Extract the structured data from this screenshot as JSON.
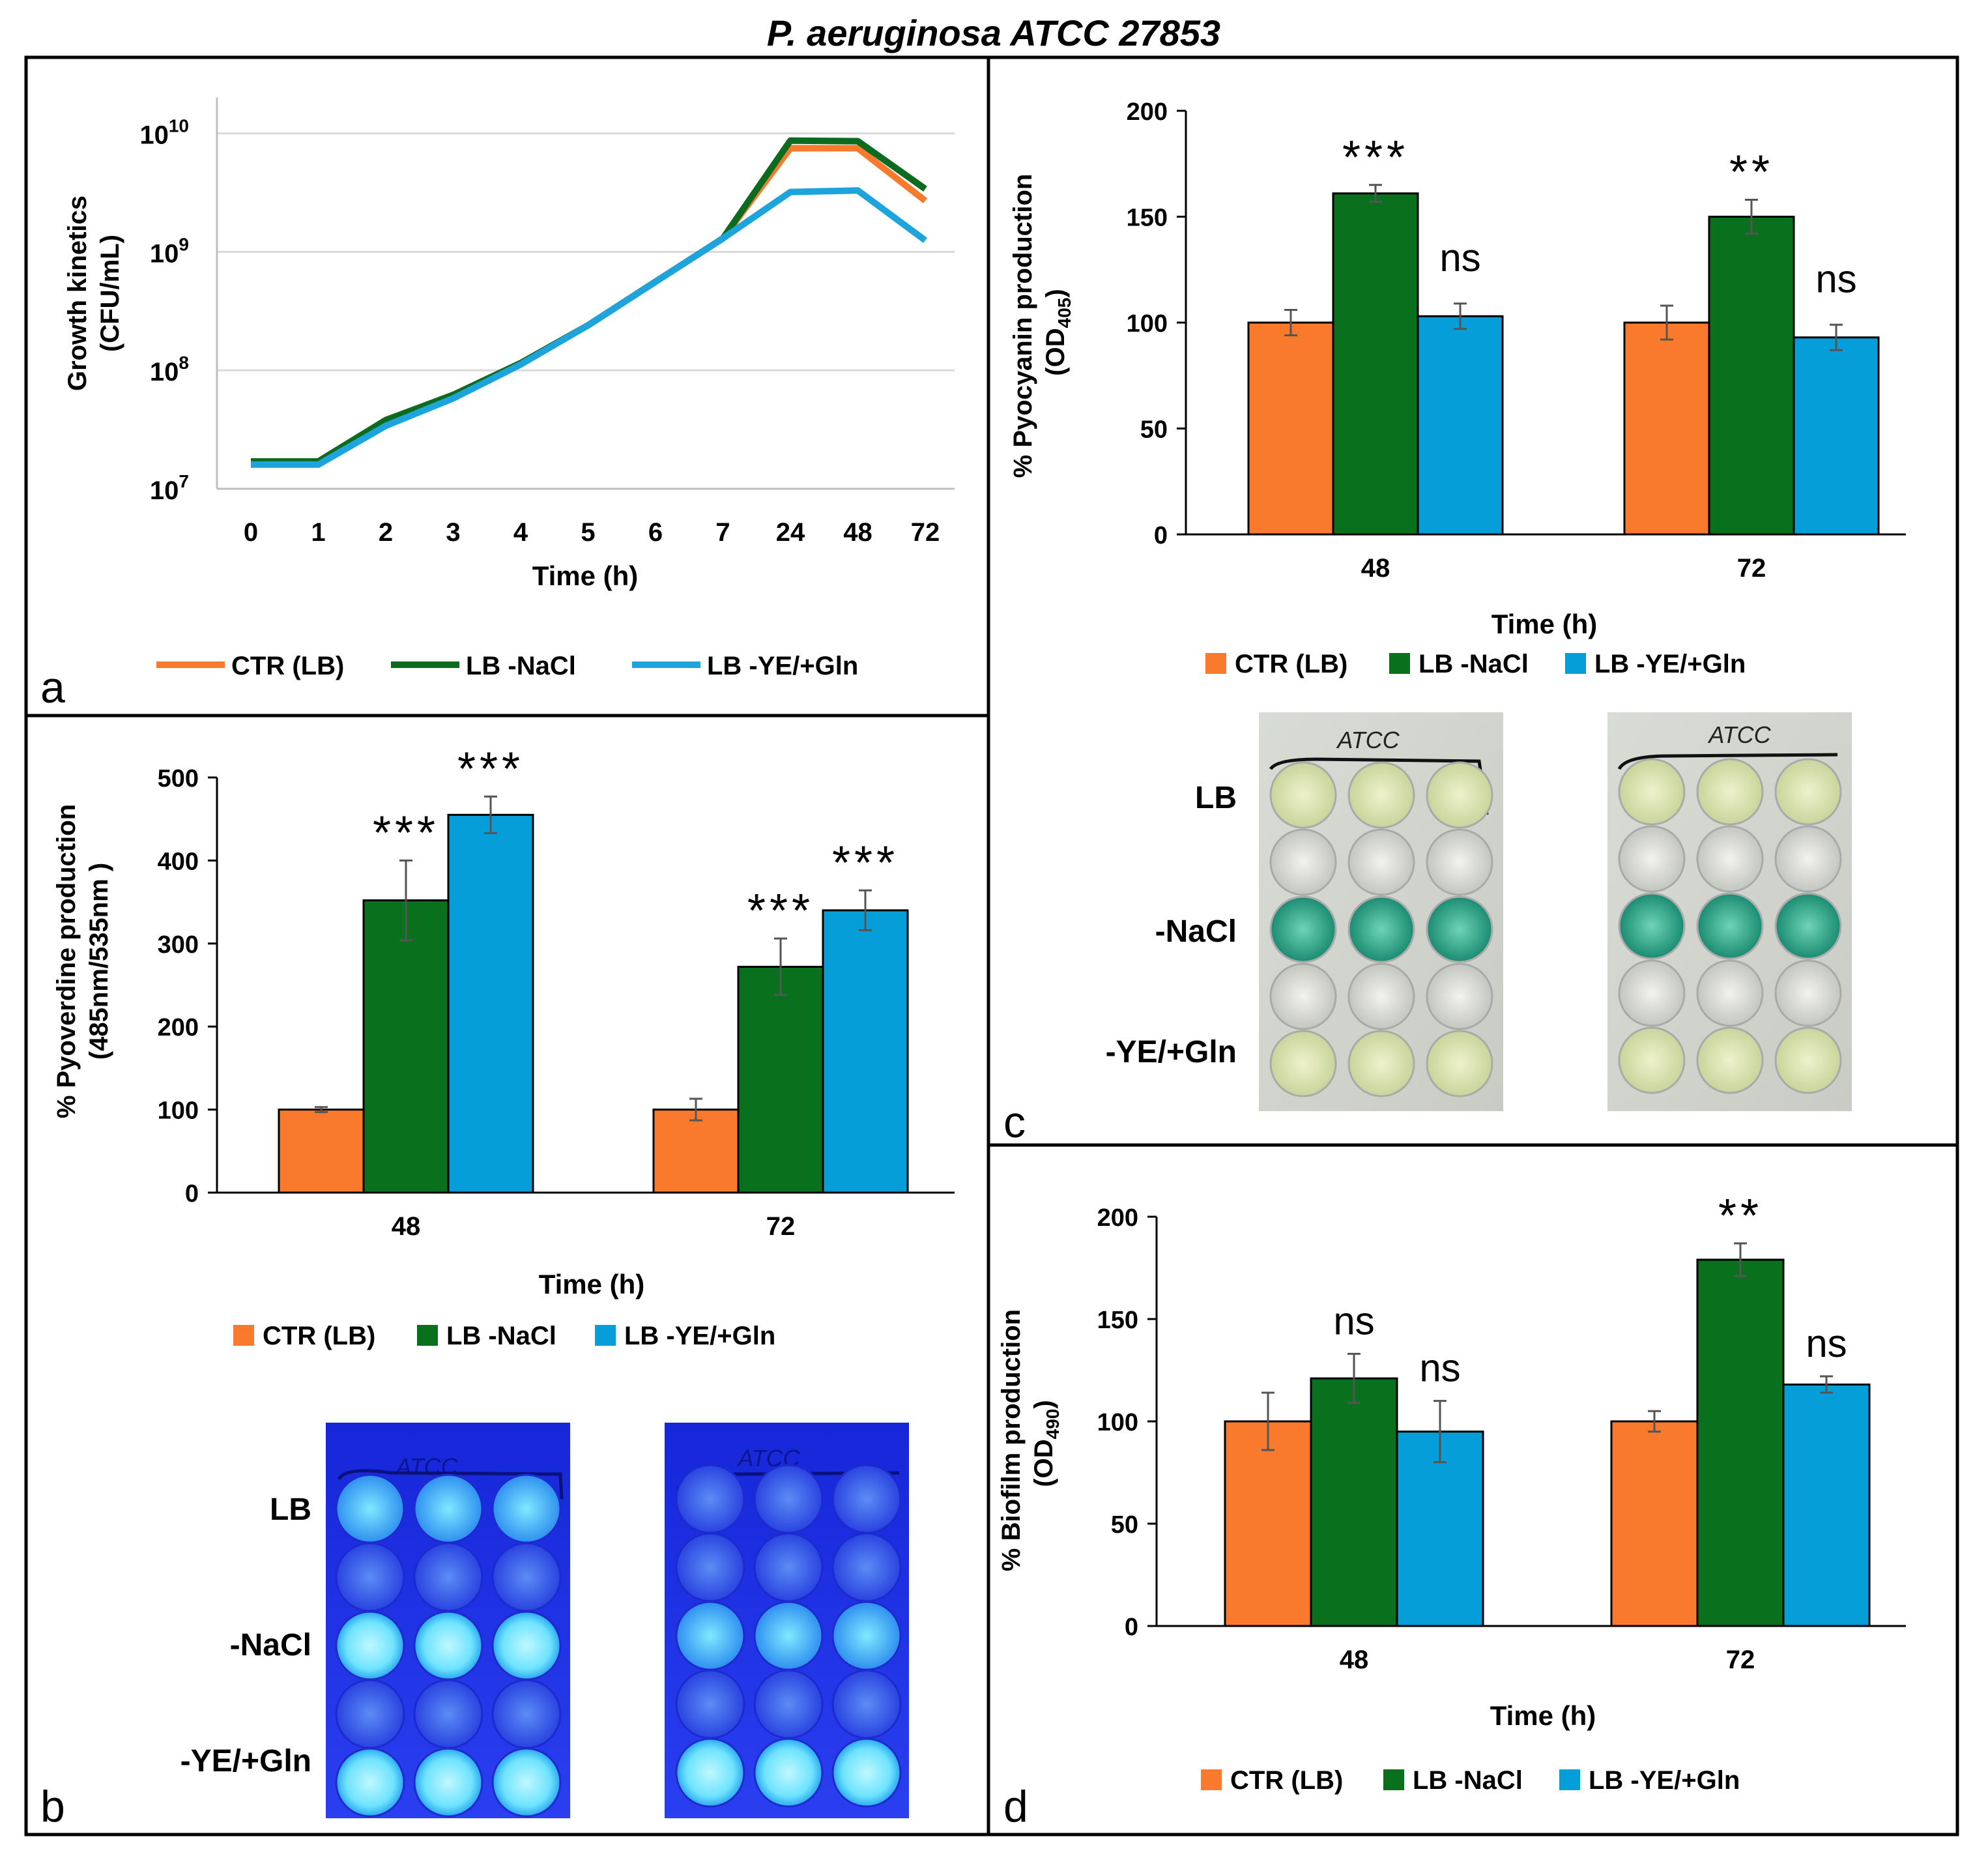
{
  "figure_title": "P. aeruginosa ATCC 27853",
  "colors": {
    "ctr": "#F97A2C",
    "nacl": "#0B6B1F",
    "yeg": "#1EA4DC",
    "bar_ctr": "#F97A2C",
    "bar_nacl": "#09701E",
    "bar_yeg": "#069ED8",
    "grid": "#D9D9D9"
  },
  "chart_data": [
    {
      "id": "a",
      "panel_label": "a",
      "type": "line",
      "ylabel_lines": [
        "Growth kinetics",
        "(CFU/mL)"
      ],
      "xlabel": "Time (h)",
      "categories": [
        "0",
        "1",
        "2",
        "3",
        "4",
        "5",
        "6",
        "7",
        "24",
        "48",
        "72"
      ],
      "y_scale": "log",
      "ylim": [
        10000000,
        20000000000
      ],
      "yticks": [
        {
          "base": "10",
          "exp": "7"
        },
        {
          "base": "10",
          "exp": "8"
        },
        {
          "base": "10",
          "exp": "9"
        },
        {
          "base": "10",
          "exp": "10"
        }
      ],
      "series": [
        {
          "key": "ctr",
          "name": "CTR (LB)",
          "values": [
            17000000,
            17000000,
            38000000,
            62000000,
            115000000,
            240000000,
            560000000,
            1300000000,
            7500000000,
            7500000000,
            2700000000
          ]
        },
        {
          "key": "nacl",
          "name": "LB -NaCl",
          "values": [
            17000000,
            17000000,
            38000000,
            62000000,
            115000000,
            240000000,
            560000000,
            1300000000,
            8700000000,
            8600000000,
            3400000000
          ]
        },
        {
          "key": "yeg",
          "name": "LB -YE/+Gln",
          "values": [
            16000000,
            16000000,
            34000000,
            58000000,
            112000000,
            240000000,
            560000000,
            1300000000,
            3200000000,
            3300000000,
            1250000000
          ]
        }
      ]
    },
    {
      "id": "b",
      "panel_label": "b",
      "type": "bar",
      "ylabel_lines": [
        "% Pyoverdine  production",
        "(485nm/535nm )"
      ],
      "xlabel": "Time (h)",
      "categories": [
        "48",
        "72"
      ],
      "ylim": [
        0,
        500
      ],
      "yticks": [
        "0",
        "100",
        "200",
        "300",
        "400",
        "500"
      ],
      "series": [
        {
          "key": "ctr",
          "name": "CTR (LB)",
          "values": [
            100,
            100
          ],
          "errors": [
            3,
            13
          ],
          "annotations": [
            "",
            ""
          ]
        },
        {
          "key": "nacl",
          "name": "LB -NaCl",
          "values": [
            352,
            272
          ],
          "errors": [
            48,
            34
          ],
          "annotations": [
            "***",
            "***"
          ]
        },
        {
          "key": "yeg",
          "name": "LB -YE/+Gln",
          "values": [
            455,
            340
          ],
          "errors": [
            22,
            24
          ],
          "annotations": [
            "***",
            "***"
          ]
        }
      ]
    },
    {
      "id": "c",
      "panel_label": "c",
      "type": "bar",
      "ylabel_lines": [
        "% Pyocyanin production",
        "(OD",
        "405",
        ")"
      ],
      "xlabel": "Time (h)",
      "categories": [
        "48",
        "72"
      ],
      "ylim": [
        0,
        200
      ],
      "yticks": [
        "0",
        "50",
        "100",
        "150",
        "200"
      ],
      "series": [
        {
          "key": "ctr",
          "name": "CTR (LB)",
          "values": [
            100,
            100
          ],
          "errors": [
            6,
            8
          ],
          "annotations": [
            "",
            ""
          ]
        },
        {
          "key": "nacl",
          "name": "LB -NaCl",
          "values": [
            161,
            150
          ],
          "errors": [
            4,
            8
          ],
          "annotations": [
            "***",
            "**"
          ]
        },
        {
          "key": "yeg",
          "name": "LB -YE/+Gln",
          "values": [
            103,
            93
          ],
          "errors": [
            6,
            6
          ],
          "annotations": [
            "ns",
            "ns"
          ]
        }
      ]
    },
    {
      "id": "d",
      "panel_label": "d",
      "type": "bar",
      "ylabel_lines": [
        "% Biofilm production",
        "(OD",
        "490",
        ")"
      ],
      "xlabel": "Time (h)",
      "categories": [
        "48",
        "72"
      ],
      "ylim": [
        0,
        200
      ],
      "yticks": [
        "0",
        "50",
        "100",
        "150",
        "200"
      ],
      "series": [
        {
          "key": "ctr",
          "name": "CTR (LB)",
          "values": [
            100,
            100
          ],
          "errors": [
            14,
            5
          ],
          "annotations": [
            "",
            ""
          ]
        },
        {
          "key": "nacl",
          "name": "LB -NaCl",
          "values": [
            121,
            179
          ],
          "errors": [
            12,
            8
          ],
          "annotations": [
            "ns",
            "**"
          ]
        },
        {
          "key": "yeg",
          "name": "LB -YE/+Gln",
          "values": [
            95,
            118
          ],
          "errors": [
            15,
            4
          ],
          "annotations": [
            "ns",
            "ns"
          ]
        }
      ]
    }
  ],
  "photos": {
    "pyoverdine": {
      "row_labels": [
        "LB",
        "-NaCl",
        "-YE/+Gln"
      ],
      "plate_label": "ATCC"
    },
    "pyocyanin": {
      "row_labels": [
        "LB",
        "-NaCl",
        "-YE/+Gln"
      ],
      "plate_label": "ATCC"
    }
  }
}
